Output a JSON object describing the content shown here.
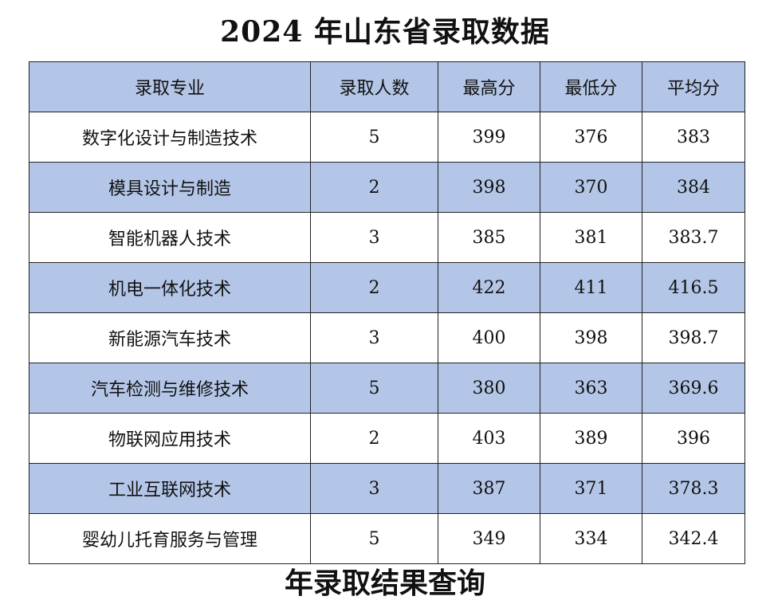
{
  "title": "2024 年山东省录取数据",
  "table": {
    "headers": [
      "录取专业",
      "录取人数",
      "最高分",
      "最低分",
      "平均分"
    ],
    "rows": [
      [
        "数字化设计与制造技术",
        "5",
        "399",
        "376",
        "383"
      ],
      [
        "模具设计与制造",
        "2",
        "398",
        "370",
        "384"
      ],
      [
        "智能机器人技术",
        "3",
        "385",
        "381",
        "383.7"
      ],
      [
        "机电一体化技术",
        "2",
        "422",
        "411",
        "416.5"
      ],
      [
        "新能源汽车技术",
        "3",
        "400",
        "398",
        "398.7"
      ],
      [
        "汽车检测与维修技术",
        "5",
        "380",
        "363",
        "369.6"
      ],
      [
        "物联网应用技术",
        "2",
        "403",
        "389",
        "396"
      ],
      [
        "工业互联网技术",
        "3",
        "387",
        "371",
        "378.3"
      ],
      [
        "婴幼儿托育服务与管理",
        "5",
        "349",
        "334",
        "342.4"
      ]
    ]
  },
  "bottom_text": "年录取结果查询",
  "colors": {
    "alt_row_fill": "#b4c6e7",
    "border": "#222222"
  }
}
